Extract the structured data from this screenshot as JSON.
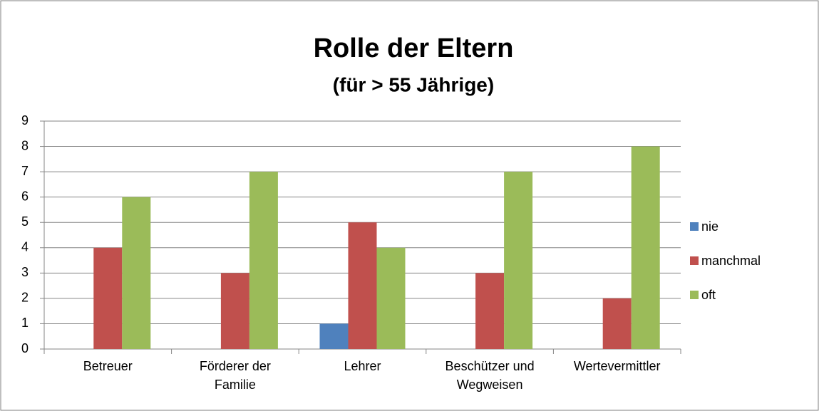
{
  "chart_data": {
    "type": "bar",
    "title": "Rolle der Eltern",
    "subtitle": "(für > 55 Jährige)",
    "categories": [
      "Betreuer",
      "Förderer der Familie",
      "Lehrer",
      "Beschützer und Wegweisen",
      "Wertevermittler"
    ],
    "series": [
      {
        "name": "nie",
        "color": "#4f81bd",
        "values": [
          0,
          0,
          1,
          0,
          0
        ]
      },
      {
        "name": "manchmal",
        "color": "#c0504d",
        "values": [
          4,
          3,
          5,
          3,
          2
        ]
      },
      {
        "name": "oft",
        "color": "#9bbb59",
        "values": [
          6,
          7,
          4,
          7,
          8
        ]
      }
    ],
    "ylim": [
      0,
      9
    ],
    "yticks": [
      0,
      1,
      2,
      3,
      4,
      5,
      6,
      7,
      8,
      9
    ],
    "grid": true,
    "legend": "right"
  }
}
